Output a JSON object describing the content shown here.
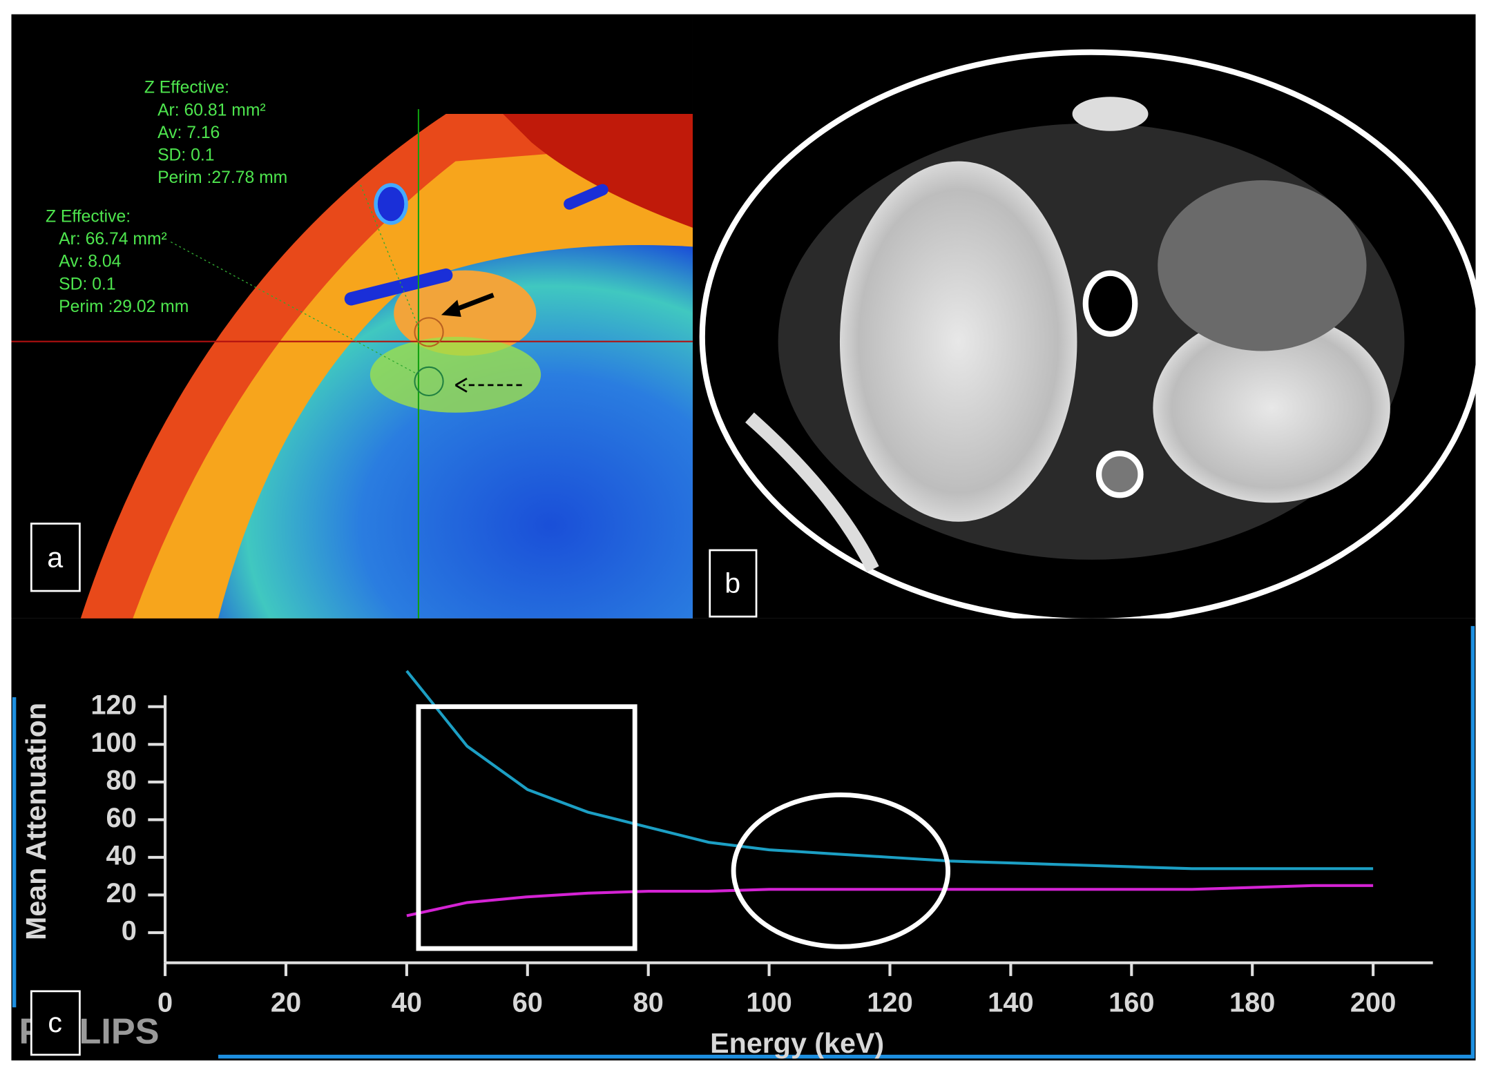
{
  "panel_labels": [
    "a",
    "b",
    "c"
  ],
  "measurements": [
    {
      "title": "Z Effective:",
      "lines": [
        "Ar: 60.81 mm²",
        "Av: 7.16",
        "SD: 0.1",
        "Perim :27.78 mm"
      ]
    },
    {
      "title": "Z Effective:",
      "lines": [
        "Ar: 66.74 mm²",
        "Av: 8.04",
        "SD: 0.1",
        "Perim :29.02 mm"
      ]
    }
  ],
  "watermark": "PHILIPS",
  "chart_data": {
    "type": "line",
    "xlabel": "Energy (keV)",
    "ylabel": "Mean Attenuation",
    "x": [
      40,
      50,
      60,
      70,
      80,
      90,
      100,
      110,
      120,
      130,
      140,
      150,
      160,
      170,
      180,
      190,
      200
    ],
    "series": [
      {
        "color": "#1c9fc4",
        "values": [
          139,
          99,
          76,
          64,
          56,
          48,
          44,
          42,
          40,
          38,
          37,
          36,
          35,
          34,
          34,
          34,
          34
        ]
      },
      {
        "color": "#d423d4",
        "values": [
          9,
          16,
          19,
          21,
          22,
          22,
          23,
          23,
          23,
          23,
          23,
          23,
          23,
          23,
          24,
          25,
          25
        ]
      }
    ],
    "xlim": [
      0,
      210
    ],
    "ylim": [
      -16,
      126
    ],
    "xticks": [
      0,
      20,
      40,
      60,
      80,
      100,
      120,
      140,
      160,
      180,
      200
    ],
    "yticks": [
      0,
      20,
      40,
      60,
      80,
      100,
      120
    ]
  }
}
